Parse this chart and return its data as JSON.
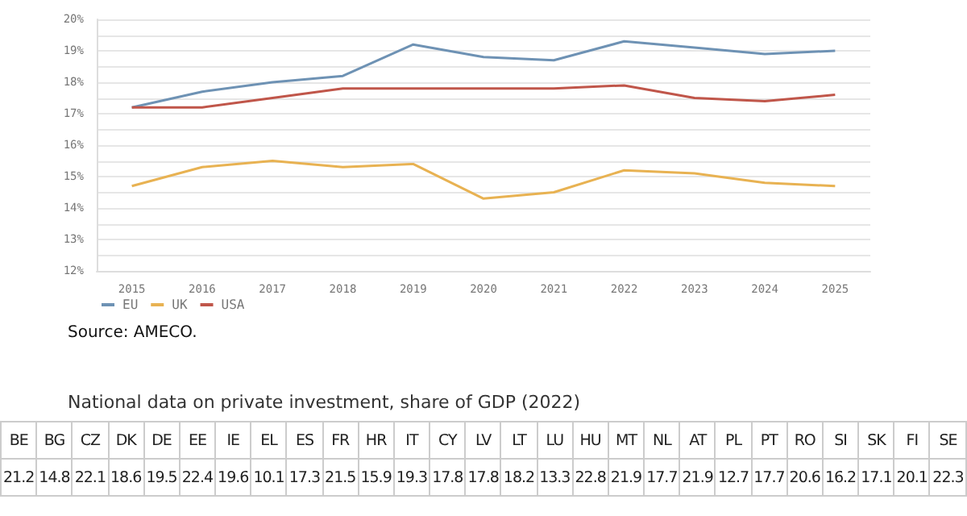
{
  "chart_data": [
    {
      "type": "line",
      "categories": [
        "2015",
        "2016",
        "2017",
        "2018",
        "2019",
        "2020",
        "2021",
        "2022",
        "2023",
        "2024",
        "2025"
      ],
      "series": [
        {
          "name": "EU",
          "color": "#6e92b4",
          "values": [
            17.2,
            17.7,
            18.0,
            18.2,
            19.2,
            18.8,
            18.7,
            19.3,
            19.1,
            18.9,
            19.0
          ]
        },
        {
          "name": "UK",
          "color": "#e8b252",
          "values": [
            14.7,
            15.3,
            15.5,
            15.3,
            15.4,
            14.3,
            14.5,
            15.2,
            15.1,
            14.8,
            14.7
          ]
        },
        {
          "name": "USA",
          "color": "#c0564a",
          "values": [
            17.2,
            17.2,
            17.5,
            17.8,
            17.8,
            17.8,
            17.8,
            17.9,
            17.5,
            17.4,
            17.6
          ]
        }
      ],
      "ylim": [
        12,
        20
      ],
      "yticks": [
        {
          "value": 12,
          "label": "12%"
        },
        {
          "value": 12.5,
          "label": null
        },
        {
          "value": 13,
          "label": "13%"
        },
        {
          "value": 13.5,
          "label": null
        },
        {
          "value": 14,
          "label": "14%"
        },
        {
          "value": 14.5,
          "label": null
        },
        {
          "value": 15,
          "label": "15%"
        },
        {
          "value": 15.5,
          "label": null
        },
        {
          "value": 16,
          "label": "16%"
        },
        {
          "value": 16.5,
          "label": null
        },
        {
          "value": 17,
          "label": "17%"
        },
        {
          "value": 17.5,
          "label": null
        },
        {
          "value": 18,
          "label": "18%"
        },
        {
          "value": 18.5,
          "label": null
        },
        {
          "value": 19,
          "label": "19%"
        },
        {
          "value": 19.5,
          "label": null
        },
        {
          "value": 20,
          "label": "20%"
        }
      ],
      "grid": "y",
      "legend": "bottom left",
      "marker": "none",
      "line_style": "solid",
      "annotations": [
        "Source: AMECO."
      ]
    },
    {
      "type": "other",
      "data_labels": true,
      "title": "National data on private investment, share of GDP (2022)",
      "categories": [
        "BE",
        "BG",
        "CZ",
        "DK",
        "DE",
        "EE",
        "IE",
        "EL",
        "ES",
        "FR",
        "HR",
        "IT",
        "CY",
        "LV",
        "LT",
        "LU",
        "HU",
        "MT",
        "NL",
        "AT",
        "PL",
        "PT",
        "RO",
        "SI",
        "SK",
        "FI",
        "SE"
      ],
      "values": [
        21.2,
        14.8,
        22.1,
        18.6,
        19.5,
        22.4,
        19.6,
        10.1,
        17.3,
        21.5,
        15.9,
        19.3,
        17.8,
        17.8,
        18.2,
        13.3,
        22.8,
        21.9,
        17.7,
        21.9,
        12.7,
        17.7,
        20.6,
        16.2,
        17.1,
        20.1,
        22.3
      ]
    }
  ]
}
